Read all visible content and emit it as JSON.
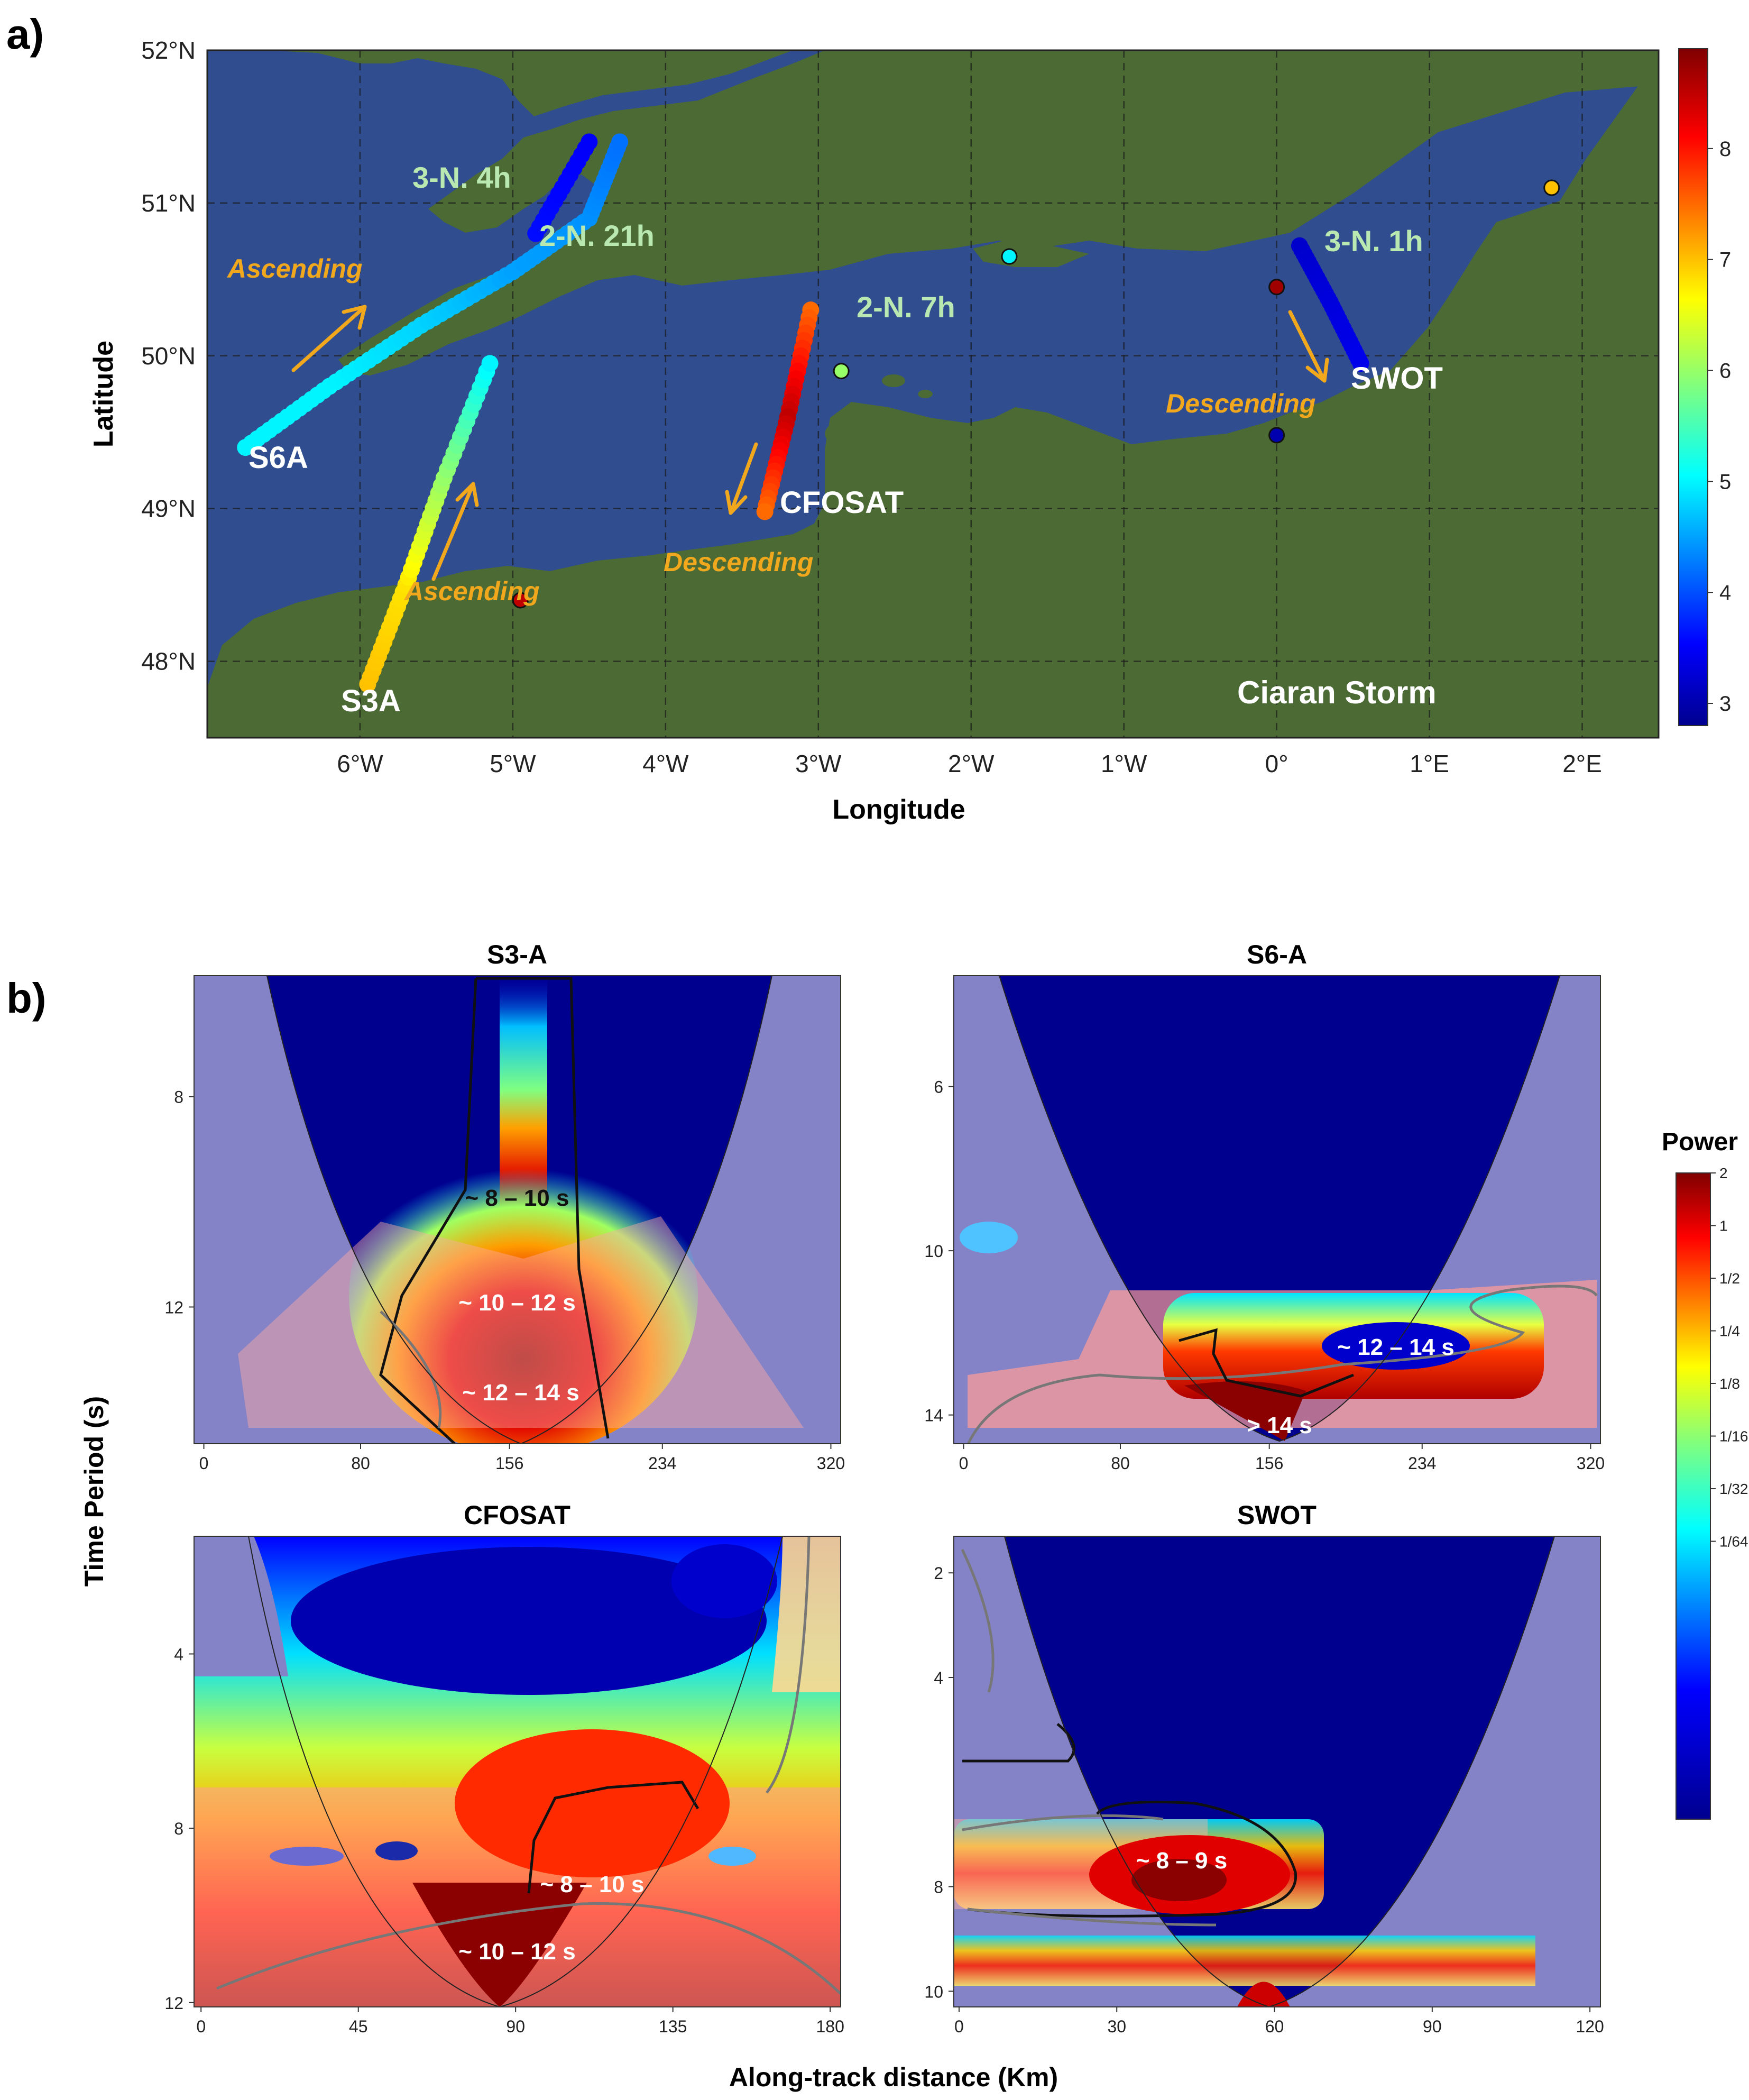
{
  "panel_a": {
    "label": "a)",
    "xlabel": "Longitude",
    "ylabel": "Latitude",
    "x_ticks": [
      "6°W",
      "5°W",
      "4°W",
      "3°W",
      "2°W",
      "1°W",
      "0°",
      "1°E",
      "2°E"
    ],
    "y_ticks": [
      "52°N",
      "51°N",
      "50°N",
      "49°N",
      "48°N"
    ],
    "colorbar_ticks": [
      "8",
      "7",
      "6",
      "5",
      "4",
      "3"
    ],
    "storm_label": "Ciaran Storm",
    "satellites": [
      "S6A",
      "S3A",
      "CFOSAT",
      "SWOT"
    ],
    "pass_labels": [
      "3-N. 4h",
      "2-N. 21h",
      "2-N. 7h",
      "3-N. 1h"
    ],
    "direction_labels": [
      "Ascending",
      "Ascending",
      "Descending",
      "Descending"
    ]
  },
  "panel_b": {
    "label": "b)",
    "xlabel": "Along-track distance (Km)",
    "ylabel": "Time Period (s)",
    "colorbar_title": "Power",
    "colorbar_ticks": [
      "2",
      "1",
      "1/2",
      "1/4",
      "1/8",
      "1/16",
      "1/32",
      "1/64"
    ]
  },
  "chart_data": [
    {
      "type": "scatter",
      "title": "Ciaran Storm",
      "xlabel": "Longitude",
      "ylabel": "Latitude",
      "xlim": [
        -7.0,
        2.5
      ],
      "ylim": [
        47.5,
        52.0
      ],
      "colorbar_range": [
        2.8,
        8.9
      ],
      "series": [
        {
          "name": "S6A",
          "pass": "3-N. 4h",
          "direction": "Ascending",
          "points": [
            [
              -6.75,
              49.4,
              5.0
            ],
            [
              -6.2,
              49.8,
              5.0
            ],
            [
              -5.6,
              50.2,
              4.8
            ],
            [
              -5.0,
              50.55,
              4.5
            ],
            [
              -4.5,
              50.9,
              4.4
            ],
            [
              -4.3,
              51.4,
              4.2
            ]
          ]
        },
        {
          "name": "2-N. 21h",
          "points": [
            [
              -4.85,
              50.8,
              3.6
            ],
            [
              -4.5,
              51.4,
              3.5
            ]
          ]
        },
        {
          "name": "S3A",
          "pass": "",
          "direction": "Ascending",
          "points": [
            [
              -5.95,
              47.85,
              7.0
            ],
            [
              -5.7,
              48.5,
              6.8
            ],
            [
              -5.45,
              49.2,
              6.0
            ],
            [
              -5.15,
              49.95,
              5.0
            ]
          ]
        },
        {
          "name": "CFOSAT",
          "pass": "2-N. 7h",
          "direction": "Descending",
          "points": [
            [
              -3.05,
              50.3,
              7.5
            ],
            [
              -3.2,
              49.6,
              8.5
            ],
            [
              -3.35,
              48.98,
              7.5
            ]
          ]
        },
        {
          "name": "SWOT",
          "pass": "3-N. 1h",
          "direction": "Descending",
          "points": [
            [
              0.15,
              50.72,
              3.2
            ],
            [
              0.35,
              50.35,
              3.3
            ],
            [
              0.55,
              49.95,
              3.4
            ]
          ]
        },
        {
          "name": "buoys",
          "points": [
            [
              -1.75,
              50.65,
              5.0
            ],
            [
              1.8,
              51.1,
              7.0
            ],
            [
              0.0,
              49.48,
              3.0
            ],
            [
              -4.95,
              48.4,
              8.5
            ],
            [
              -2.85,
              49.9,
              6.0
            ],
            [
              0.0,
              50.45,
              8.7
            ]
          ]
        }
      ]
    },
    {
      "type": "heatmap",
      "title": "S3-A",
      "xlabel": "Along-track distance (Km)",
      "ylabel": "Time Period (s)",
      "x_ticks": [
        "0",
        "80",
        "156",
        "234",
        "320"
      ],
      "y_ticks": [
        "8",
        "12"
      ],
      "annotations": [
        "~ 8 – 10 s",
        "~ 10 – 12 s",
        "~ 12 – 14 s"
      ]
    },
    {
      "type": "heatmap",
      "title": "S6-A",
      "xlabel": "Along-track distance (Km)",
      "ylabel": "Time Period (s)",
      "x_ticks": [
        "0",
        "80",
        "156",
        "234",
        "320"
      ],
      "y_ticks": [
        "6",
        "10",
        "14"
      ],
      "annotations": [
        "~ 12 – 14 s",
        "> 14 s"
      ]
    },
    {
      "type": "heatmap",
      "title": "CFOSAT",
      "xlabel": "Along-track distance (Km)",
      "ylabel": "Time Period (s)",
      "x_ticks": [
        "0",
        "45",
        "90",
        "135",
        "180"
      ],
      "y_ticks": [
        "4",
        "8",
        "12"
      ],
      "annotations": [
        "~ 8 – 10 s",
        "~ 10 – 12 s"
      ]
    },
    {
      "type": "heatmap",
      "title": "SWOT",
      "xlabel": "Along-track distance (Km)",
      "ylabel": "Time Period (s)",
      "x_ticks": [
        "0",
        "30",
        "60",
        "90",
        "120"
      ],
      "y_ticks": [
        "2",
        "4",
        "8",
        "10"
      ],
      "annotations": [
        "~ 8 – 9 s"
      ]
    }
  ],
  "colors": {
    "ocean": "#2f4d8f",
    "land": "#4c6a34",
    "coi": "#8583c8",
    "arrow": "#f2a81d"
  }
}
